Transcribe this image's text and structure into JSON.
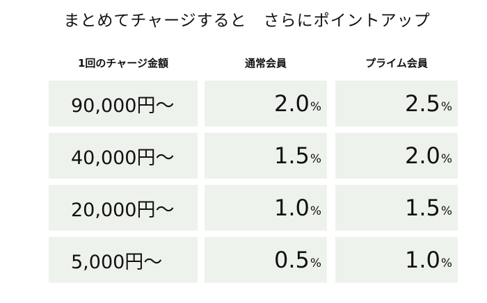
{
  "title": "まとめてチャージすると　さらにポイントアップ",
  "headers": {
    "amount": "1回のチャージ金額",
    "normal": "通常会員",
    "prime": "プライム会員"
  },
  "rows": [
    {
      "amount": "90,000円〜",
      "normal": "2.0",
      "prime": "2.5"
    },
    {
      "amount": "40,000円〜",
      "normal": "1.5",
      "prime": "2.0"
    },
    {
      "amount": "20,000円〜",
      "normal": "1.0",
      "prime": "1.5"
    },
    {
      "amount": "5,000円〜",
      "normal": "0.5",
      "prime": "1.0"
    }
  ],
  "unit": "%",
  "colors": {
    "cell_background": "#eef2ec",
    "text": "#111111"
  }
}
